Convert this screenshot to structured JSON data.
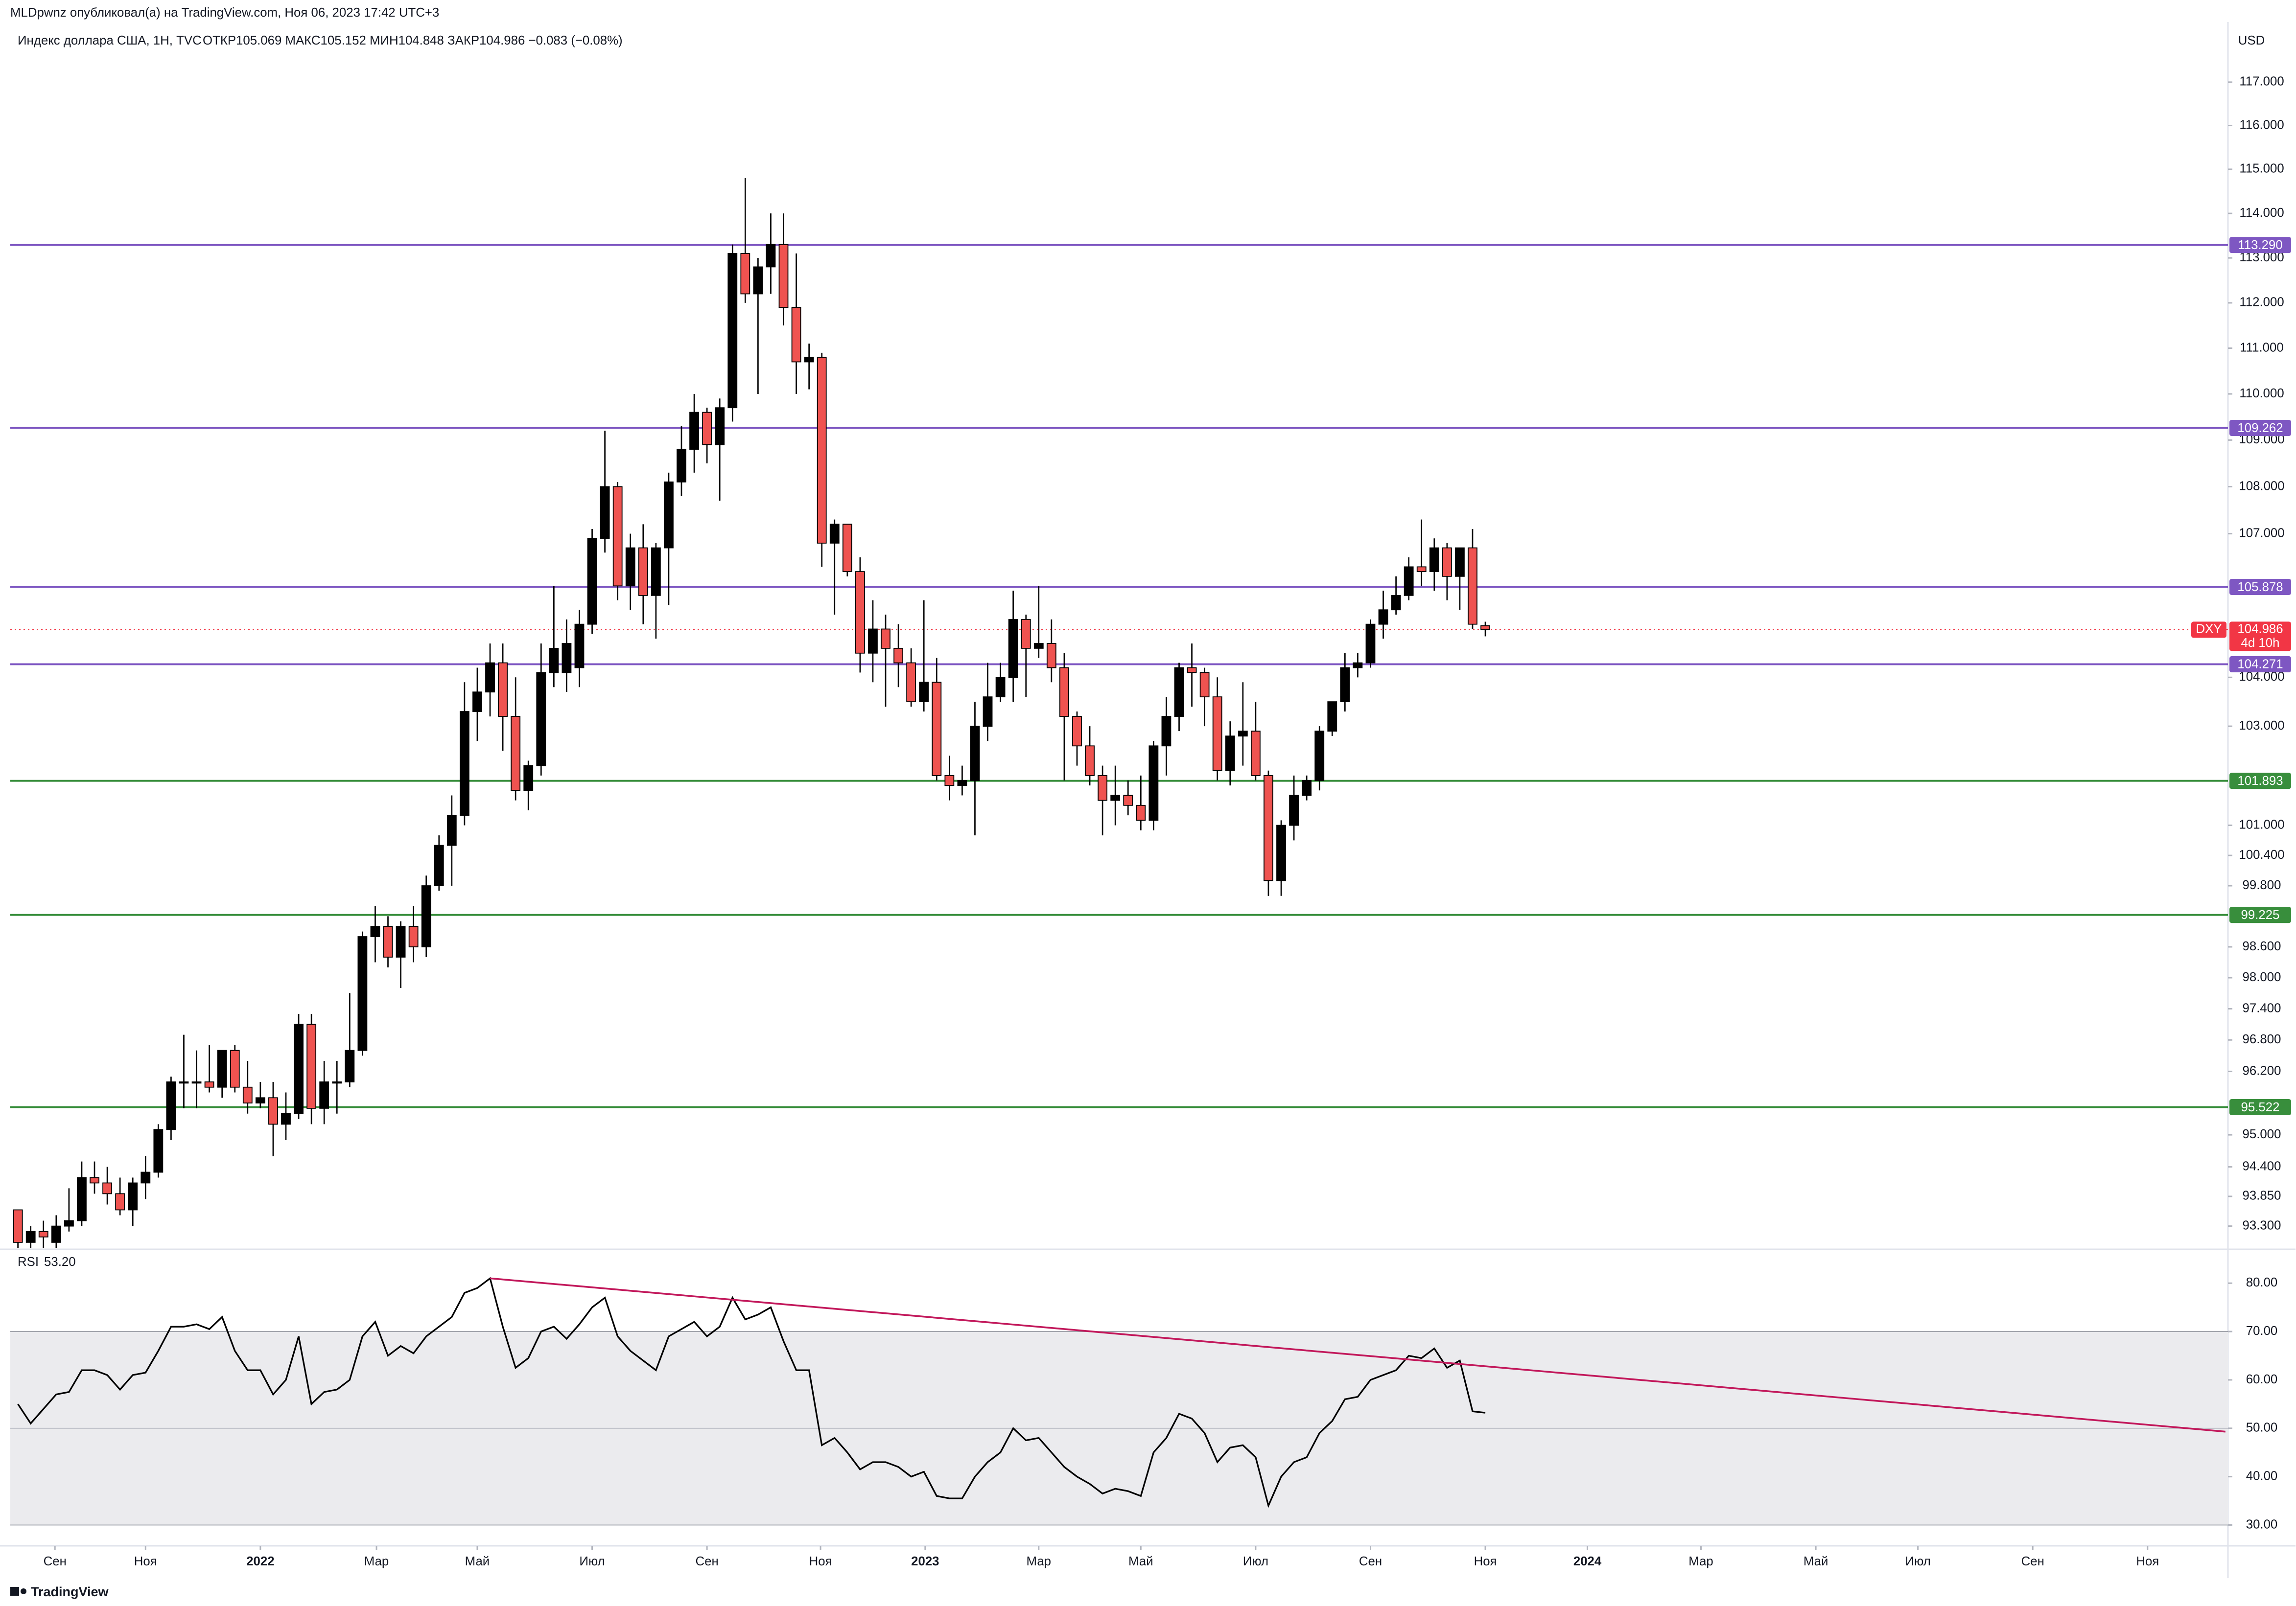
{
  "header": {
    "published": "MLDpwnz опубликовал(а) на TradingView.com, Ноя 06, 2023 17:42 UTC+3"
  },
  "footer": {
    "logo": "TradingView"
  },
  "chart_data": [
    {
      "type": "candlestick",
      "title": "Индекс доллара США, 1Н, TVC",
      "ohlc_label": "ОТКР105.069 МАКС105.152 МИН104.848 ЗАКР104.986 −0.083 (−0.08%)",
      "currency": "USD",
      "log_scale": true,
      "grid": false,
      "up_color": "#000000",
      "down_color": "#ef5350",
      "open": [
        93.6,
        93.0,
        93.2,
        93.0,
        93.3,
        93.4,
        94.2,
        94.1,
        93.9,
        93.6,
        94.1,
        94.3,
        95.1,
        96.0,
        96.0,
        96.0,
        95.9,
        96.6,
        95.9,
        95.6,
        95.7,
        95.2,
        95.4,
        97.1,
        95.5,
        96.0,
        96.0,
        96.6,
        98.8,
        99.0,
        98.4,
        99.0,
        98.6,
        99.8,
        100.6,
        101.2,
        103.3,
        103.7,
        104.3,
        103.2,
        101.7,
        102.2,
        104.1,
        104.1,
        104.2,
        105.1,
        106.9,
        108.0,
        105.9,
        106.7,
        105.7,
        106.7,
        108.1,
        108.8,
        109.6,
        108.9,
        109.7,
        113.1,
        112.2,
        112.8,
        113.3,
        111.9,
        110.7,
        110.8,
        106.8,
        107.2,
        106.2,
        104.5,
        105.0,
        104.6,
        104.3,
        103.5,
        103.9,
        102.0,
        101.8,
        101.9,
        103.0,
        103.6,
        104.0,
        105.2,
        104.6,
        104.7,
        104.2,
        103.2,
        102.6,
        102.0,
        101.5,
        101.6,
        101.4,
        101.1,
        102.6,
        103.2,
        104.2,
        104.1,
        103.6,
        102.1,
        102.8,
        102.9,
        102.0,
        99.9,
        101.0,
        101.6,
        101.9,
        102.9,
        103.5,
        104.2,
        104.3,
        105.1,
        105.4,
        105.7,
        106.3,
        106.2,
        106.7,
        106.1,
        106.7,
        105.069
      ],
      "high": [
        93.6,
        93.3,
        93.4,
        93.5,
        94.0,
        94.5,
        94.5,
        94.4,
        94.2,
        94.2,
        94.6,
        95.2,
        96.1,
        96.9,
        96.6,
        96.7,
        96.6,
        96.7,
        96.4,
        96.0,
        96.0,
        95.8,
        97.3,
        97.3,
        96.4,
        96.4,
        97.7,
        98.9,
        99.4,
        99.2,
        99.1,
        99.4,
        100.0,
        100.8,
        101.6,
        103.9,
        104.2,
        104.7,
        104.7,
        104.0,
        102.3,
        104.7,
        105.9,
        105.2,
        105.4,
        107.1,
        109.2,
        108.1,
        107.0,
        107.2,
        106.8,
        108.3,
        109.3,
        110.0,
        109.7,
        109.9,
        113.3,
        114.8,
        113.0,
        114.0,
        114.0,
        113.1,
        111.1,
        110.9,
        107.3,
        107.2,
        106.5,
        105.6,
        105.3,
        105.1,
        104.6,
        105.6,
        104.4,
        102.4,
        102.2,
        103.5,
        104.3,
        104.3,
        105.8,
        105.3,
        105.9,
        105.2,
        104.5,
        103.3,
        103.0,
        102.2,
        102.2,
        101.9,
        102.0,
        102.7,
        103.6,
        104.3,
        104.7,
        104.2,
        104.0,
        103.1,
        103.9,
        103.5,
        102.1,
        101.1,
        102.0,
        102.0,
        103.0,
        103.5,
        104.5,
        104.5,
        105.2,
        105.8,
        106.1,
        106.5,
        107.3,
        106.9,
        106.8,
        106.7,
        107.1,
        105.152
      ],
      "low": [
        92.9,
        92.9,
        92.9,
        92.9,
        93.2,
        93.3,
        93.9,
        93.7,
        93.5,
        93.3,
        93.8,
        94.2,
        94.9,
        95.5,
        95.5,
        95.8,
        95.7,
        95.8,
        95.4,
        95.5,
        94.6,
        94.9,
        95.3,
        95.2,
        95.2,
        95.4,
        95.9,
        96.5,
        98.3,
        98.2,
        97.8,
        98.3,
        98.4,
        99.7,
        99.8,
        101.0,
        102.7,
        103.2,
        102.5,
        101.5,
        101.3,
        102.0,
        103.8,
        103.7,
        103.8,
        104.9,
        106.6,
        105.6,
        105.4,
        105.1,
        104.8,
        105.5,
        107.8,
        108.3,
        108.5,
        107.7,
        109.4,
        112.0,
        110.0,
        112.2,
        111.5,
        110.0,
        110.1,
        106.3,
        105.3,
        106.1,
        104.1,
        103.9,
        103.4,
        103.8,
        103.4,
        103.3,
        101.9,
        101.5,
        101.6,
        100.8,
        102.7,
        103.5,
        103.5,
        103.6,
        104.4,
        103.9,
        101.9,
        102.2,
        101.8,
        100.8,
        101.0,
        101.2,
        100.9,
        100.9,
        102.0,
        102.9,
        103.4,
        103.0,
        101.9,
        101.8,
        102.2,
        101.9,
        99.6,
        99.6,
        100.7,
        101.5,
        101.7,
        102.8,
        103.3,
        104.0,
        104.2,
        104.8,
        105.3,
        105.6,
        105.9,
        105.8,
        105.6,
        105.4,
        105.0,
        104.848
      ],
      "close": [
        93.0,
        93.2,
        93.1,
        93.3,
        93.4,
        94.2,
        94.1,
        93.9,
        93.6,
        94.1,
        94.3,
        95.1,
        96.0,
        96.0,
        96.0,
        95.9,
        96.6,
        95.9,
        95.6,
        95.7,
        95.2,
        95.4,
        97.1,
        95.5,
        96.0,
        96.0,
        96.6,
        98.8,
        99.0,
        98.4,
        99.0,
        98.6,
        99.8,
        100.6,
        101.2,
        103.3,
        103.7,
        104.3,
        103.2,
        101.7,
        102.2,
        104.1,
        104.6,
        104.7,
        105.1,
        106.9,
        108.0,
        105.9,
        106.7,
        105.7,
        106.7,
        108.1,
        108.8,
        109.6,
        108.9,
        109.7,
        113.1,
        112.2,
        112.8,
        113.3,
        111.9,
        110.7,
        110.8,
        106.8,
        107.2,
        106.2,
        104.5,
        105.0,
        104.6,
        104.3,
        103.5,
        103.9,
        102.0,
        101.8,
        101.9,
        103.0,
        103.6,
        104.0,
        105.2,
        104.6,
        104.7,
        104.2,
        103.2,
        102.6,
        102.0,
        101.5,
        101.6,
        101.4,
        101.1,
        102.6,
        103.2,
        104.2,
        104.1,
        103.6,
        102.1,
        102.8,
        102.9,
        102.0,
        99.9,
        101.0,
        101.6,
        101.9,
        102.9,
        103.5,
        104.2,
        104.3,
        105.1,
        105.4,
        105.7,
        106.3,
        106.2,
        106.7,
        106.1,
        106.7,
        105.1,
        104.986
      ],
      "xlim": [
        -0.6,
        173.2
      ],
      "xticks": [
        {
          "value": 2.9,
          "label": "Сен"
        },
        {
          "value": 10.0,
          "label": "Ноя"
        },
        {
          "value": 19.0,
          "label": "2022"
        },
        {
          "value": 28.1,
          "label": "Мар"
        },
        {
          "value": 36.0,
          "label": "Май"
        },
        {
          "value": 45.0,
          "label": "Июл"
        },
        {
          "value": 54.0,
          "label": "Сен"
        },
        {
          "value": 62.9,
          "label": "Ноя"
        },
        {
          "value": 71.1,
          "label": "2023"
        },
        {
          "value": 80.0,
          "label": "Мар"
        },
        {
          "value": 88.0,
          "label": "Май"
        },
        {
          "value": 97.0,
          "label": "Июл"
        },
        {
          "value": 106.0,
          "label": "Сен"
        },
        {
          "value": 115.0,
          "label": "Ноя"
        },
        {
          "value": 123.0,
          "label": "2024"
        },
        {
          "value": 131.9,
          "label": "Мар"
        },
        {
          "value": 140.9,
          "label": "Май"
        },
        {
          "value": 148.9,
          "label": "Июл"
        },
        {
          "value": 157.9,
          "label": "Сен"
        },
        {
          "value": 166.9,
          "label": "Ноя"
        }
      ],
      "ylim": [
        92.9,
        118.4
      ],
      "yticks": [
        {
          "value": 117,
          "label": "117.000"
        },
        {
          "value": 116,
          "label": "116.000"
        },
        {
          "value": 115,
          "label": "115.000"
        },
        {
          "value": 114,
          "label": "114.000"
        },
        {
          "value": 113,
          "label": "113.000"
        },
        {
          "value": 112,
          "label": "112.000"
        },
        {
          "value": 111,
          "label": "111.000"
        },
        {
          "value": 110,
          "label": "110.000"
        },
        {
          "value": 109,
          "label": "109.000"
        },
        {
          "value": 108,
          "label": "108.000"
        },
        {
          "value": 107,
          "label": "107.000"
        },
        {
          "value": 104,
          "label": "104.000"
        },
        {
          "value": 103,
          "label": "103.000"
        },
        {
          "value": 101,
          "label": "101.000"
        },
        {
          "value": 100.4,
          "label": "100.400"
        },
        {
          "value": 99.8,
          "label": "99.800"
        },
        {
          "value": 98.6,
          "label": "98.600"
        },
        {
          "value": 98,
          "label": "98.000"
        },
        {
          "value": 97.4,
          "label": "97.400"
        },
        {
          "value": 96.8,
          "label": "96.800"
        },
        {
          "value": 96.2,
          "label": "96.200"
        },
        {
          "value": 95,
          "label": "95.000"
        },
        {
          "value": 94.4,
          "label": "94.400"
        },
        {
          "value": 93.85,
          "label": "93.850"
        },
        {
          "value": 93.3,
          "label": "93.300"
        }
      ],
      "levels": [
        {
          "value": 113.29,
          "label": "113.290",
          "color": "#7e57c2"
        },
        {
          "value": 109.262,
          "label": "109.262",
          "color": "#7e57c2"
        },
        {
          "value": 105.878,
          "label": "105.878",
          "color": "#7e57c2"
        },
        {
          "value": 104.271,
          "label": "104.271",
          "color": "#7e57c2"
        },
        {
          "value": 101.893,
          "label": "101.893",
          "color": "#388e3c"
        },
        {
          "value": 99.225,
          "label": "99.225",
          "color": "#388e3c"
        },
        {
          "value": 95.522,
          "label": "95.522",
          "color": "#388e3c"
        }
      ],
      "last_price": {
        "name": "DXY",
        "value": 104.986,
        "label": "104.986",
        "countdown": "4d 10h",
        "color": "#f23645"
      }
    },
    {
      "type": "line",
      "title": "RSI",
      "current_label": "53.20",
      "color": "#000000",
      "values": [
        55,
        51,
        54,
        57,
        57.5,
        62,
        62,
        61,
        58,
        61,
        61.5,
        66,
        71,
        71,
        71.5,
        70.5,
        73,
        66,
        62,
        62,
        57,
        60,
        69,
        55,
        57.5,
        58,
        60,
        69,
        72,
        65,
        67,
        65.5,
        69,
        71,
        73,
        78,
        79,
        81,
        71,
        62.5,
        64.5,
        70,
        71,
        68.5,
        71.5,
        75,
        77,
        69,
        66,
        64,
        62,
        69,
        70.5,
        72,
        69,
        71,
        77,
        72.5,
        73.5,
        75,
        68,
        62,
        62,
        46.5,
        48,
        45,
        41.5,
        43,
        43,
        42,
        40,
        41,
        36,
        35.5,
        35.5,
        40,
        43,
        45,
        50,
        47.5,
        48,
        45,
        42,
        40,
        38.5,
        36.5,
        37.5,
        37,
        36,
        45,
        48,
        53,
        52,
        49,
        43,
        46,
        46.5,
        44,
        34,
        40,
        43,
        44,
        49,
        51.5,
        56,
        56.5,
        60,
        61,
        62,
        65,
        64.5,
        66.5,
        62.5,
        64,
        53.5,
        53.2
      ],
      "xlim": [
        -0.6,
        173.2
      ],
      "ylim": [
        26,
        86.4
      ],
      "yticks": [
        {
          "value": 80,
          "label": "80.00"
        },
        {
          "value": 70,
          "label": "70.00"
        },
        {
          "value": 60,
          "label": "60.00"
        },
        {
          "value": 50,
          "label": "50.00"
        },
        {
          "value": 40,
          "label": "40.00"
        },
        {
          "value": 30,
          "label": "30.00"
        }
      ],
      "band": [
        30,
        70
      ],
      "midline": 50,
      "trendline": {
        "x": [
          37,
          173
        ],
        "values": [
          81,
          49.3
        ],
        "color": "#c2185b"
      }
    }
  ]
}
